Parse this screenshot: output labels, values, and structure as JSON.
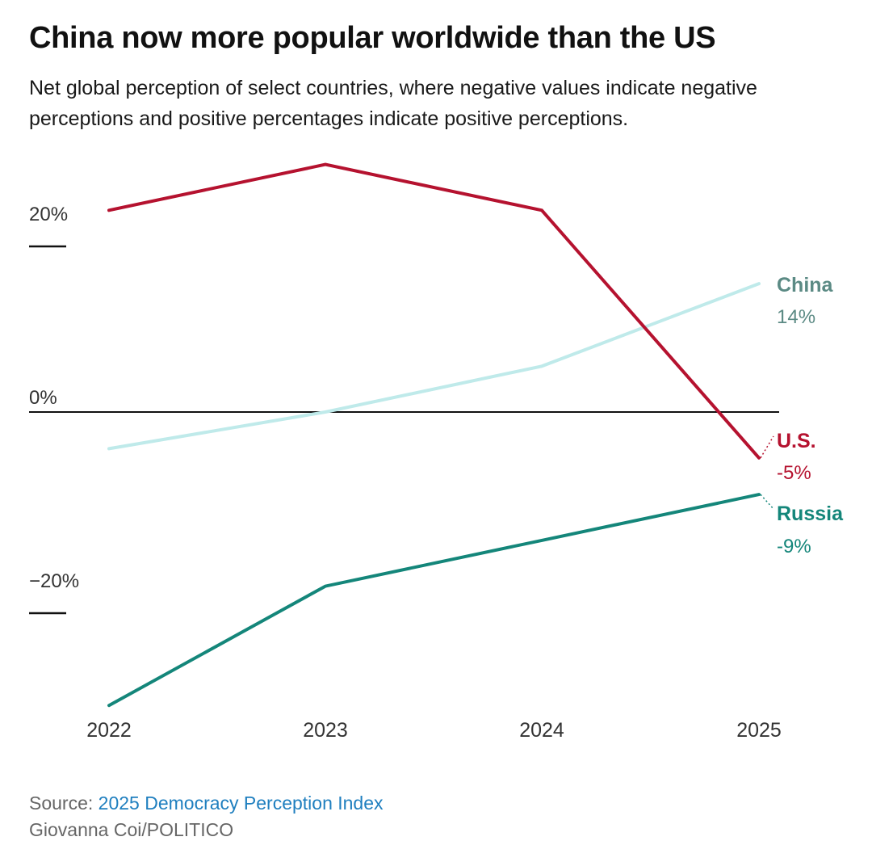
{
  "title": "China now more popular worldwide than the US",
  "subtitle": "Net global perception of select countries, where negative values indicate negative perceptions and positive percentages indicate positive perceptions.",
  "source": {
    "prefix": "Source: ",
    "link_text": "2025 Democracy Perception Index",
    "credit": "Giovanna Coi/POLITICO"
  },
  "colors": {
    "us": "#b5122f",
    "china_line": "#bfeaea",
    "china_label": "#5b8a84",
    "russia": "#14867a",
    "zero_line": "#111111",
    "link": "#1f7fbf"
  },
  "chart_data": {
    "type": "line",
    "x": [
      "2022",
      "2023",
      "2024",
      "2025"
    ],
    "ylim": [
      -32,
      27
    ],
    "y_ticks": [
      {
        "value": 20,
        "label": "20%"
      },
      {
        "value": 0,
        "label": "0%"
      },
      {
        "value": -20,
        "label": "−20%"
      }
    ],
    "series": [
      {
        "key": "us",
        "name": "U.S.",
        "values": [
          22,
          27,
          22,
          -5
        ],
        "end_label": "-5%"
      },
      {
        "key": "china",
        "name": "China",
        "values": [
          -4,
          0,
          5,
          14
        ],
        "end_label": "14%"
      },
      {
        "key": "russia",
        "name": "Russia",
        "values": [
          -32,
          -19,
          -14,
          -9
        ],
        "end_label": "-9%"
      }
    ],
    "grid": false,
    "legend": "direct labels at line ends"
  }
}
